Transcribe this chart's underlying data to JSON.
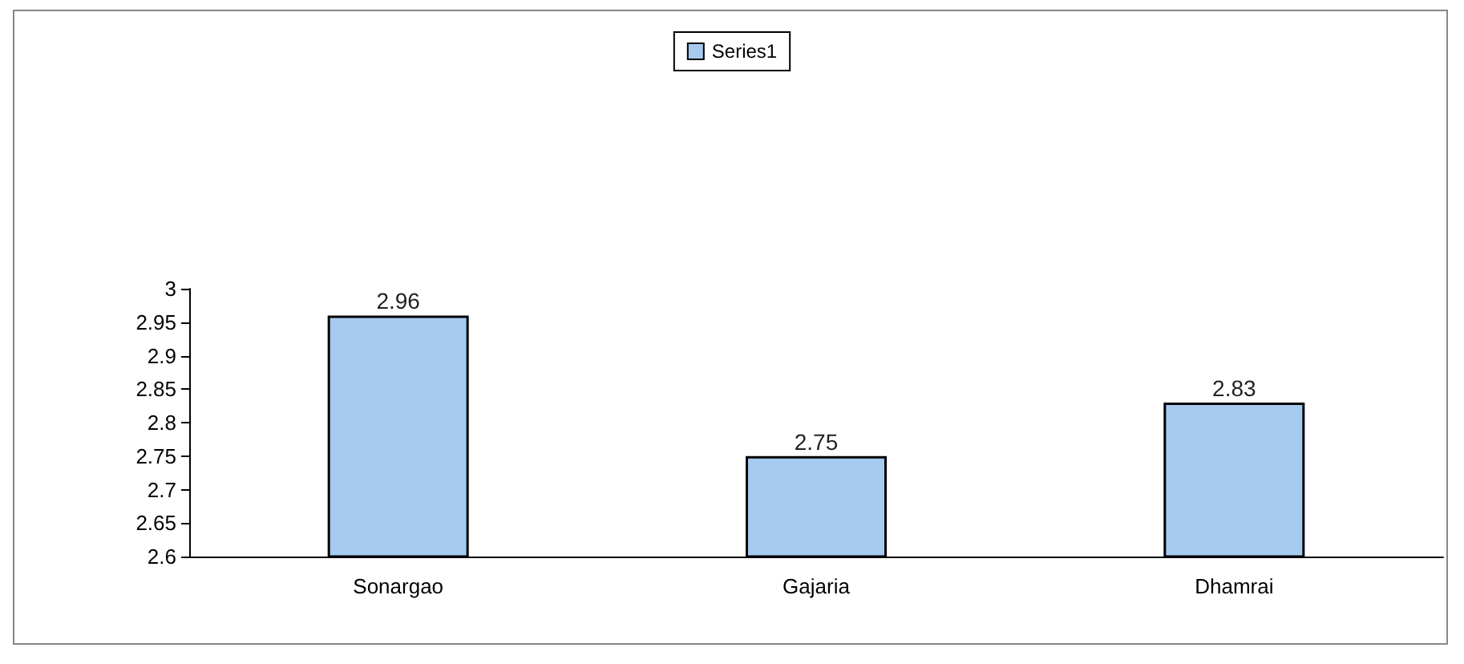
{
  "chart_data": {
    "type": "bar",
    "categories": [
      "Sonargao",
      "Gajaria",
      "Dhamrai"
    ],
    "series": [
      {
        "name": "Series1",
        "color": "#a6caf0",
        "values": [
          2.96,
          2.75,
          2.83
        ]
      }
    ],
    "ylim": [
      2.6,
      3
    ],
    "yticks": [
      2.6,
      2.65,
      2.7,
      2.75,
      2.8,
      2.85,
      2.9,
      2.95,
      3
    ],
    "grid": false,
    "legend": "top",
    "data_labels": true
  }
}
